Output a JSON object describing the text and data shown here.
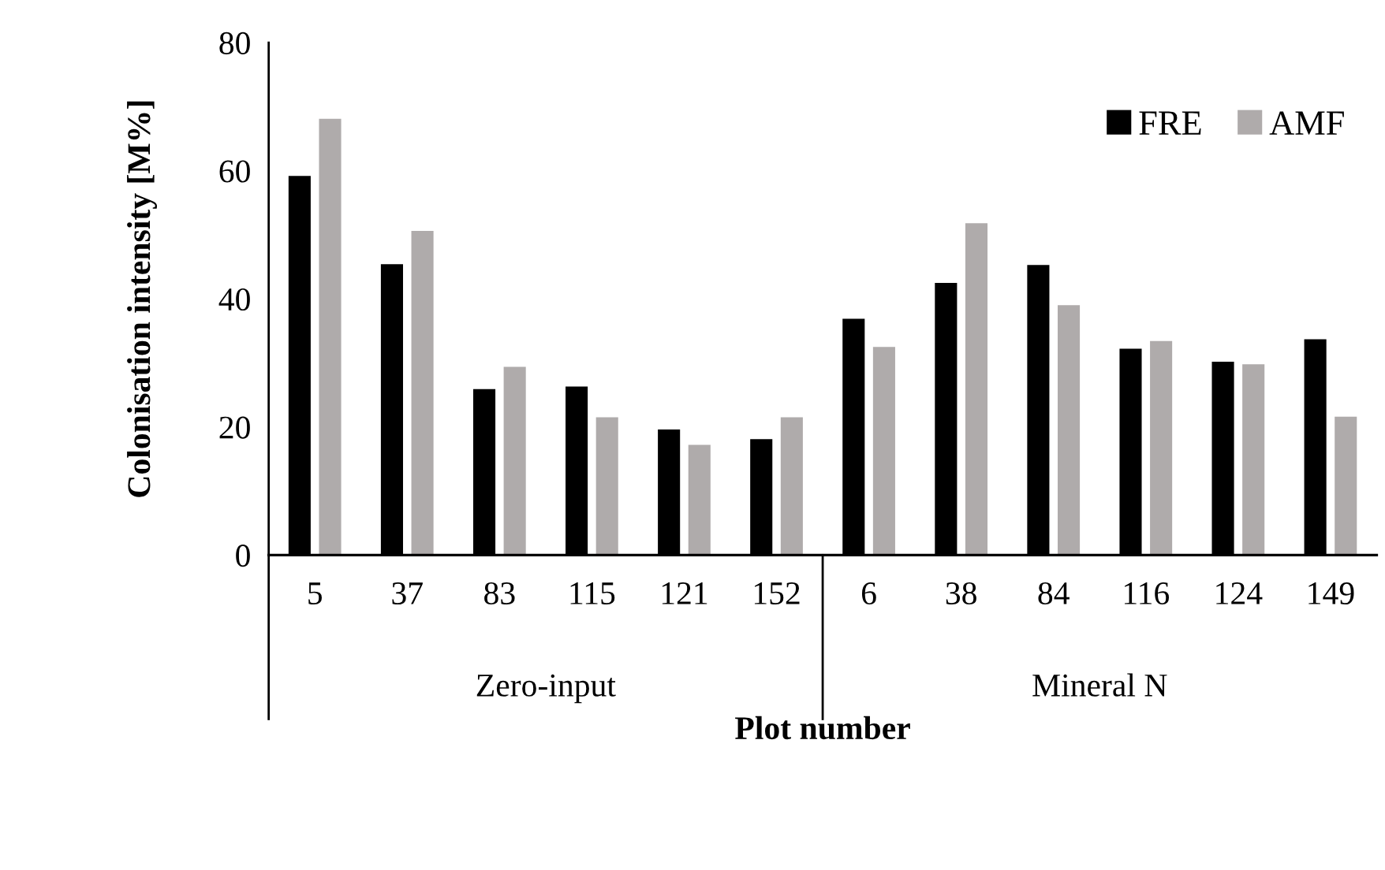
{
  "chart_data": {
    "type": "bar",
    "xlabel": "Plot number",
    "ylabel": "Colonisation intensity [M%]",
    "categories": [
      "5",
      "37",
      "83",
      "115",
      "121",
      "152",
      "6",
      "38",
      "84",
      "116",
      "124",
      "149"
    ],
    "series": [
      {
        "name": "FRE",
        "color": "#000000",
        "values": [
          59.2,
          45.4,
          25.9,
          26.3,
          19.6,
          18.1,
          36.9,
          42.5,
          45.3,
          32.2,
          30.2,
          33.7
        ]
      },
      {
        "name": "AMF",
        "color": "#afabab",
        "values": [
          68.1,
          50.6,
          29.4,
          21.5,
          17.2,
          21.5,
          32.5,
          51.8,
          39.0,
          33.4,
          29.8,
          21.6
        ]
      }
    ],
    "annotations": [
      "Zero-input",
      "Mineral N"
    ],
    "ylim": [
      0,
      80
    ],
    "yticks": [
      0,
      20,
      40,
      60,
      80
    ],
    "grid": false,
    "legend": "top right"
  }
}
